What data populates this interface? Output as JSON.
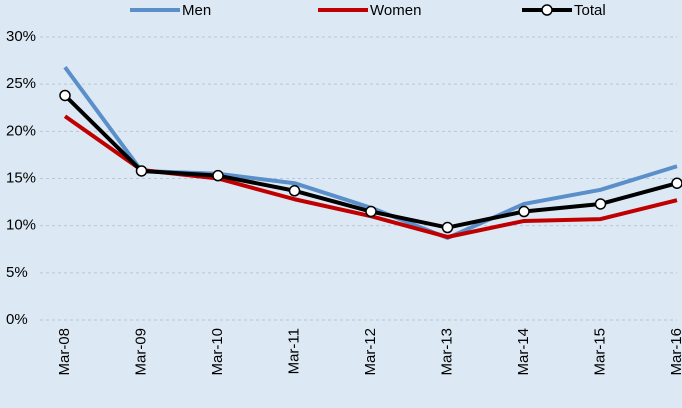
{
  "chart_data": {
    "type": "line",
    "categories": [
      "Mar-08",
      "Mar-09",
      "Mar-10",
      "Mar-11",
      "Mar-12",
      "Mar-13",
      "Mar-14",
      "Mar-15",
      "Mar-16"
    ],
    "series": [
      {
        "name": "Men",
        "color": "#5b8fc9",
        "values": [
          26.8,
          15.8,
          15.5,
          14.5,
          11.9,
          8.7,
          12.3,
          13.8,
          16.3
        ]
      },
      {
        "name": "Women",
        "color": "#c00000",
        "values": [
          21.6,
          15.9,
          15.0,
          12.8,
          11.0,
          8.8,
          10.5,
          10.7,
          12.7
        ]
      },
      {
        "name": "Total",
        "color": "#000000",
        "values": [
          23.8,
          15.8,
          15.3,
          13.7,
          11.5,
          9.8,
          11.5,
          12.3,
          14.5
        ],
        "marker": "circle"
      }
    ],
    "ylim": [
      0,
      30
    ],
    "yticks": [
      {
        "value": 0,
        "label": "0%"
      },
      {
        "value": 5,
        "label": "5%"
      },
      {
        "value": 10,
        "label": "10%"
      },
      {
        "value": 15,
        "label": "15%"
      },
      {
        "value": 20,
        "label": "20%"
      },
      {
        "value": 25,
        "label": "25%"
      },
      {
        "value": 30,
        "label": "30%"
      }
    ],
    "grid": true
  }
}
